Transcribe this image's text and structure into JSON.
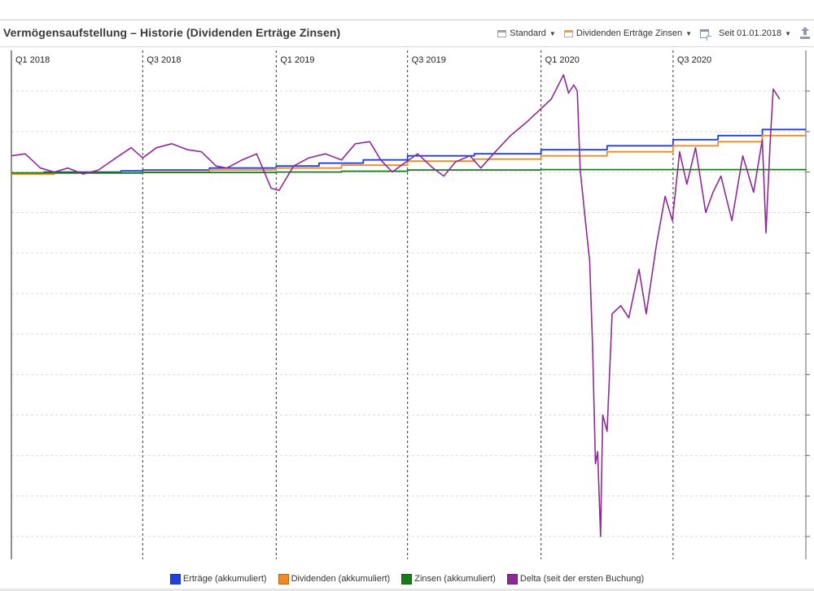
{
  "header": {
    "title": "Vermögensaufstellung – Historie (Dividenden Erträge Zinsen)"
  },
  "toolbar": {
    "view_label": "Standard",
    "series_label": "Dividenden Erträge Zinsen",
    "range_label": "Seit 01.01.2018",
    "icons": [
      "layout-icon",
      "series-icon",
      "add-chart-icon",
      "export-icon"
    ]
  },
  "colors": {
    "ertraege": "#1f3fe0",
    "dividenden": "#f08a24",
    "zinsen": "#1a7a1a",
    "delta": "#8e2a96"
  },
  "chart_data": {
    "type": "line",
    "x_axis": {
      "type": "date",
      "range": [
        "2018-01-01",
        "2020-12-31"
      ],
      "period_labels": [
        {
          "date": "2018-01-01",
          "label": "Q1 2018"
        },
        {
          "date": "2018-07-01",
          "label": "Q3 2018"
        },
        {
          "date": "2019-01-01",
          "label": "Q1 2019"
        },
        {
          "date": "2019-07-01",
          "label": "Q3 2019"
        },
        {
          "date": "2020-01-01",
          "label": "Q1 2020"
        },
        {
          "date": "2020-07-01",
          "label": "Q3 2020"
        }
      ]
    },
    "y_axis": {
      "range": [
        -9,
        2
      ],
      "tick_labels_visible": false,
      "grid": true,
      "gridline_step": 1
    },
    "legend_position": "bottom",
    "series": [
      {
        "name": "Erträge (akkumuliert)",
        "color_key": "ertraege",
        "points": [
          [
            "2018-01-01",
            -0.05
          ],
          [
            "2018-02-15",
            0.0
          ],
          [
            "2018-06-01",
            0.03
          ],
          [
            "2018-07-01",
            0.05
          ],
          [
            "2018-10-01",
            0.1
          ],
          [
            "2019-01-01",
            0.15
          ],
          [
            "2019-03-01",
            0.22
          ],
          [
            "2019-05-01",
            0.3
          ],
          [
            "2019-07-01",
            0.4
          ],
          [
            "2019-10-01",
            0.45
          ],
          [
            "2020-01-01",
            0.55
          ],
          [
            "2020-04-01",
            0.65
          ],
          [
            "2020-07-01",
            0.8
          ],
          [
            "2020-09-01",
            0.9
          ],
          [
            "2020-11-01",
            1.05
          ],
          [
            "2020-12-31",
            1.05
          ]
        ]
      },
      {
        "name": "Dividenden (akkumuliert)",
        "color_key": "dividenden",
        "points": [
          [
            "2018-01-01",
            -0.05
          ],
          [
            "2018-03-01",
            -0.03
          ],
          [
            "2018-07-01",
            0.0
          ],
          [
            "2018-10-01",
            0.05
          ],
          [
            "2019-01-01",
            0.1
          ],
          [
            "2019-04-01",
            0.17
          ],
          [
            "2019-07-01",
            0.27
          ],
          [
            "2019-10-01",
            0.32
          ],
          [
            "2020-01-01",
            0.4
          ],
          [
            "2020-04-01",
            0.5
          ],
          [
            "2020-07-01",
            0.65
          ],
          [
            "2020-09-01",
            0.75
          ],
          [
            "2020-11-01",
            0.9
          ],
          [
            "2020-12-31",
            0.9
          ]
        ]
      },
      {
        "name": "Zinsen (akkumuliert)",
        "color_key": "zinsen",
        "points": [
          [
            "2018-01-01",
            -0.02
          ],
          [
            "2018-07-01",
            -0.01
          ],
          [
            "2019-01-01",
            0.0
          ],
          [
            "2019-04-01",
            0.02
          ],
          [
            "2019-07-01",
            0.05
          ],
          [
            "2020-01-01",
            0.06
          ],
          [
            "2020-12-31",
            0.07
          ]
        ]
      },
      {
        "name": "Delta (seit der ersten Buchung)",
        "color_key": "delta",
        "points": [
          [
            "2018-01-01",
            0.4
          ],
          [
            "2018-01-20",
            0.45
          ],
          [
            "2018-02-10",
            0.1
          ],
          [
            "2018-03-01",
            0.0
          ],
          [
            "2018-03-20",
            0.1
          ],
          [
            "2018-04-10",
            -0.05
          ],
          [
            "2018-05-01",
            0.05
          ],
          [
            "2018-05-25",
            0.35
          ],
          [
            "2018-06-15",
            0.6
          ],
          [
            "2018-07-01",
            0.35
          ],
          [
            "2018-07-20",
            0.6
          ],
          [
            "2018-08-10",
            0.7
          ],
          [
            "2018-09-01",
            0.55
          ],
          [
            "2018-09-20",
            0.5
          ],
          [
            "2018-10-10",
            0.15
          ],
          [
            "2018-10-25",
            0.1
          ],
          [
            "2018-11-15",
            0.3
          ],
          [
            "2018-12-05",
            0.45
          ],
          [
            "2018-12-25",
            -0.4
          ],
          [
            "2019-01-05",
            -0.45
          ],
          [
            "2019-01-25",
            0.15
          ],
          [
            "2019-02-15",
            0.35
          ],
          [
            "2019-03-10",
            0.45
          ],
          [
            "2019-04-01",
            0.3
          ],
          [
            "2019-04-20",
            0.7
          ],
          [
            "2019-05-10",
            0.75
          ],
          [
            "2019-05-25",
            0.3
          ],
          [
            "2019-06-10",
            0.0
          ],
          [
            "2019-06-25",
            0.2
          ],
          [
            "2019-07-15",
            0.45
          ],
          [
            "2019-08-05",
            0.1
          ],
          [
            "2019-08-20",
            -0.1
          ],
          [
            "2019-09-05",
            0.25
          ],
          [
            "2019-09-25",
            0.4
          ],
          [
            "2019-10-10",
            0.1
          ],
          [
            "2019-10-30",
            0.5
          ],
          [
            "2019-11-20",
            0.9
          ],
          [
            "2019-12-10",
            1.2
          ],
          [
            "2019-12-31",
            1.55
          ],
          [
            "2020-01-15",
            1.8
          ],
          [
            "2020-02-01",
            2.4
          ],
          [
            "2020-02-08",
            1.95
          ],
          [
            "2020-02-15",
            2.15
          ],
          [
            "2020-02-20",
            2.0
          ],
          [
            "2020-02-24",
            0.05
          ],
          [
            "2020-03-01",
            -1.0
          ],
          [
            "2020-03-08",
            -2.2
          ],
          [
            "2020-03-12",
            -4.3
          ],
          [
            "2020-03-16",
            -7.2
          ],
          [
            "2020-03-19",
            -6.9
          ],
          [
            "2020-03-23",
            -9.0
          ],
          [
            "2020-03-26",
            -6.0
          ],
          [
            "2020-04-01",
            -6.4
          ],
          [
            "2020-04-08",
            -3.5
          ],
          [
            "2020-04-20",
            -3.3
          ],
          [
            "2020-05-01",
            -3.6
          ],
          [
            "2020-05-15",
            -2.4
          ],
          [
            "2020-05-25",
            -3.5
          ],
          [
            "2020-06-08",
            -1.8
          ],
          [
            "2020-06-20",
            -0.6
          ],
          [
            "2020-06-30",
            -1.2
          ],
          [
            "2020-07-10",
            0.5
          ],
          [
            "2020-07-20",
            -0.3
          ],
          [
            "2020-08-01",
            0.6
          ],
          [
            "2020-08-15",
            -1.0
          ],
          [
            "2020-08-25",
            -0.5
          ],
          [
            "2020-09-05",
            -0.1
          ],
          [
            "2020-09-20",
            -1.2
          ],
          [
            "2020-10-05",
            0.4
          ],
          [
            "2020-10-20",
            -0.5
          ],
          [
            "2020-11-01",
            0.8
          ],
          [
            "2020-11-06",
            -1.5
          ],
          [
            "2020-11-12",
            0.8
          ],
          [
            "2020-11-16",
            2.05
          ],
          [
            "2020-11-25",
            1.8
          ]
        ]
      }
    ]
  }
}
